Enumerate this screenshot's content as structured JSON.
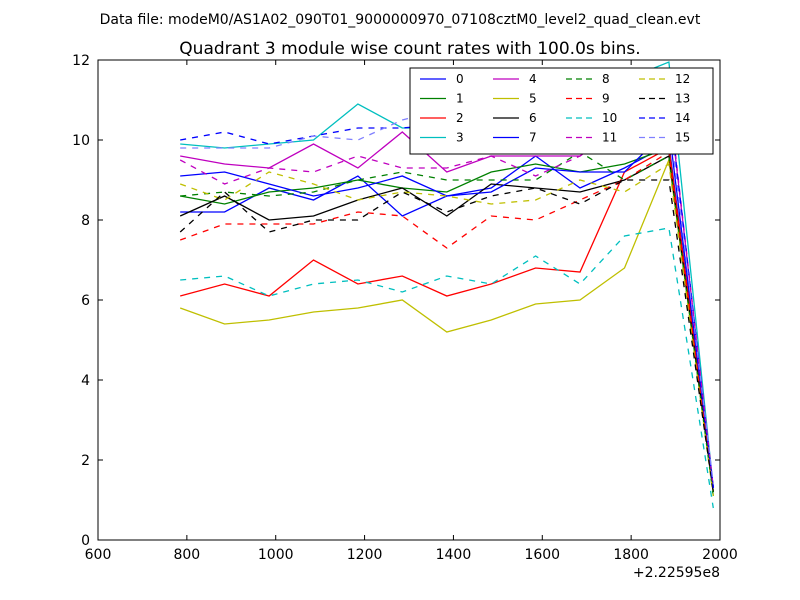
{
  "header": {
    "file_label": "Data file: modeM0/AS1A02_090T01_9000000970_07108cztM0_level2_quad_clean.evt"
  },
  "chart_data": {
    "type": "line",
    "title": "Quadrant 3 module wise count rates with 100.0s bins.",
    "xlabel": "",
    "ylabel": "",
    "x_offset_label": "+2.22595e8",
    "xlim": [
      600,
      2000
    ],
    "ylim": [
      0,
      12
    ],
    "xticks": [
      600,
      800,
      1000,
      1200,
      1400,
      1600,
      1800,
      2000
    ],
    "yticks": [
      0,
      2,
      4,
      6,
      8,
      10,
      12
    ],
    "grid": false,
    "legend_position": "top-right",
    "x": [
      785,
      885,
      985,
      1085,
      1185,
      1285,
      1385,
      1485,
      1585,
      1685,
      1785,
      1885,
      1985
    ],
    "series": [
      {
        "name": "0",
        "color": "#0000ff",
        "dash": "solid",
        "values": [
          8.2,
          8.2,
          8.8,
          8.5,
          9.1,
          8.1,
          8.6,
          8.8,
          9.6,
          8.8,
          9.3,
          9.9,
          1.3
        ]
      },
      {
        "name": "1",
        "color": "#008000",
        "dash": "solid",
        "values": [
          8.6,
          8.4,
          8.7,
          8.8,
          9.0,
          8.8,
          8.7,
          9.2,
          9.4,
          9.2,
          9.4,
          9.8,
          1.2
        ]
      },
      {
        "name": "2",
        "color": "#ff0000",
        "dash": "solid",
        "values": [
          6.1,
          6.4,
          6.1,
          7.0,
          6.4,
          6.6,
          6.1,
          6.4,
          6.8,
          6.7,
          9.2,
          9.8,
          1.3
        ]
      },
      {
        "name": "3",
        "color": "#00bfbf",
        "dash": "solid",
        "values": [
          9.9,
          9.8,
          9.9,
          10.0,
          10.9,
          10.3,
          10.3,
          10.4,
          10.4,
          10.0,
          11.5,
          11.95,
          1.3
        ]
      },
      {
        "name": "4",
        "color": "#bf00bf",
        "dash": "solid",
        "values": [
          9.6,
          9.4,
          9.3,
          9.9,
          9.3,
          10.2,
          9.2,
          9.6,
          9.6,
          9.6,
          10.4,
          11.0,
          1.3
        ]
      },
      {
        "name": "5",
        "color": "#bfbf00",
        "dash": "solid",
        "values": [
          5.8,
          5.4,
          5.5,
          5.7,
          5.8,
          6.0,
          5.2,
          5.5,
          5.9,
          6.0,
          6.8,
          9.5,
          1.2
        ]
      },
      {
        "name": "6",
        "color": "#000000",
        "dash": "solid",
        "values": [
          8.1,
          8.6,
          8.0,
          8.1,
          8.5,
          8.8,
          8.1,
          8.9,
          8.8,
          8.7,
          9.0,
          9.6,
          1.2
        ]
      },
      {
        "name": "7",
        "color": "#0000ff",
        "dash": "solid",
        "values": [
          9.1,
          9.2,
          8.9,
          8.6,
          8.8,
          9.1,
          8.6,
          8.7,
          9.3,
          9.2,
          9.2,
          10.3,
          1.3
        ]
      },
      {
        "name": "8",
        "color": "#008000",
        "dash": "dashed",
        "values": [
          8.6,
          8.7,
          8.6,
          8.7,
          9.0,
          9.2,
          9.0,
          9.0,
          9.0,
          9.7,
          9.0,
          9.6,
          1.1
        ]
      },
      {
        "name": "9",
        "color": "#ff0000",
        "dash": "dashed",
        "values": [
          7.5,
          7.9,
          7.9,
          7.9,
          8.2,
          8.1,
          7.3,
          8.1,
          8.0,
          8.5,
          9.0,
          9.7,
          1.2
        ]
      },
      {
        "name": "10",
        "color": "#00bfbf",
        "dash": "dashed",
        "values": [
          6.5,
          6.6,
          6.1,
          6.4,
          6.5,
          6.2,
          6.6,
          6.4,
          7.1,
          6.4,
          7.6,
          7.8,
          0.8
        ]
      },
      {
        "name": "11",
        "color": "#bf00bf",
        "dash": "dashed",
        "values": [
          9.5,
          8.9,
          9.3,
          9.2,
          9.6,
          9.3,
          9.3,
          9.6,
          9.1,
          9.6,
          10.4,
          11.1,
          1.3
        ]
      },
      {
        "name": "12",
        "color": "#bfbf00",
        "dash": "dashed",
        "values": [
          8.9,
          8.5,
          9.2,
          8.9,
          8.5,
          8.7,
          8.6,
          8.4,
          8.5,
          9.0,
          8.7,
          9.4,
          1.1
        ]
      },
      {
        "name": "13",
        "color": "#000000",
        "dash": "dashed",
        "values": [
          7.7,
          8.7,
          7.7,
          8.0,
          8.0,
          8.7,
          8.2,
          8.6,
          8.8,
          8.4,
          9.0,
          9.0,
          1.2
        ]
      },
      {
        "name": "14",
        "color": "#0000ff",
        "dash": "dashed",
        "values": [
          10.0,
          10.2,
          9.9,
          10.1,
          10.3,
          10.3,
          10.4,
          10.4,
          10.3,
          10.3,
          11.4,
          11.0,
          1.3
        ]
      },
      {
        "name": "15",
        "color": "#8080ff",
        "dash": "dashed",
        "values": [
          9.8,
          9.8,
          9.8,
          10.1,
          10.0,
          10.5,
          10.8,
          10.5,
          10.7,
          11.2,
          11.0,
          10.6,
          1.4
        ]
      }
    ]
  }
}
